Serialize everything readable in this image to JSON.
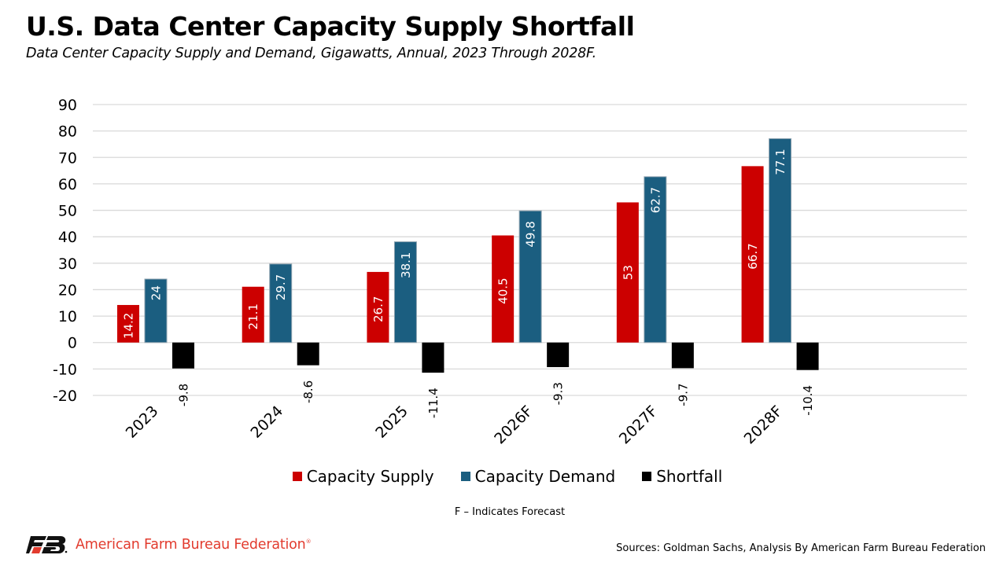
{
  "header": {
    "title": "U.S. Data Center Capacity Supply Shortfall",
    "subtitle": "Data Center Capacity Supply and Demand, Gigawatts, Annual, 2023 Through 2028F."
  },
  "chart_data": {
    "type": "bar",
    "title": "U.S. Data Center Capacity Supply Shortfall",
    "subtitle": "Data Center Capacity Supply and Demand, Gigawatts, Annual, 2023 Through 2028F.",
    "xlabel": "",
    "ylabel": "",
    "categories": [
      "2023",
      "2024",
      "2025",
      "2026F",
      "2027F",
      "2028F"
    ],
    "series": [
      {
        "name": "Capacity Supply",
        "color": "#cc0000",
        "values": [
          14.2,
          21.1,
          26.7,
          40.5,
          53,
          66.7
        ],
        "label_color": "#ffffff"
      },
      {
        "name": "Capacity Demand",
        "color": "#1b5e80",
        "values": [
          24,
          29.7,
          38.1,
          49.8,
          62.7,
          77.1
        ],
        "label_color": "#ffffff"
      },
      {
        "name": "Shortfall",
        "color": "#000000",
        "values": [
          -9.8,
          -8.6,
          -11.4,
          -9.3,
          -9.7,
          -10.4
        ],
        "label_color": "#000000"
      }
    ],
    "ylim": [
      -20,
      90
    ],
    "yticks": [
      90,
      80,
      70,
      60,
      50,
      40,
      30,
      20,
      10,
      0,
      -10,
      -20
    ],
    "grid": true,
    "legend_position": "bottom-center",
    "data_labels": true
  },
  "legend": [
    {
      "label": "Capacity Supply",
      "color": "#cc0000"
    },
    {
      "label": "Capacity Demand",
      "color": "#1b5e80"
    },
    {
      "label": "Shortfall",
      "color": "#000000"
    }
  ],
  "footer": {
    "note": "F – Indicates Forecast",
    "logo_text": "American Farm Bureau Federation",
    "logo_reg": "®",
    "sources": "Sources: Goldman Sachs, Analysis By American Farm Bureau Federation"
  }
}
